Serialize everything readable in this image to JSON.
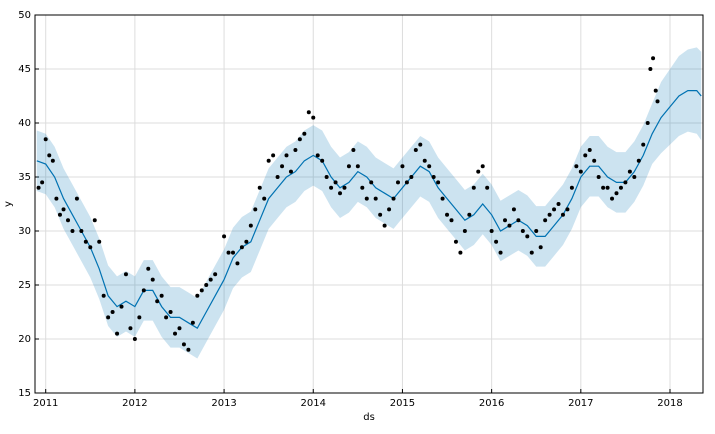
{
  "chart_data": {
    "type": "forecast",
    "x_label": "ds",
    "y_label": "y",
    "xlim": [
      2010.88,
      2018.37
    ],
    "ylim": [
      15,
      50
    ],
    "xticks": [
      2011,
      2012,
      2013,
      2014,
      2015,
      2016,
      2017,
      2018
    ],
    "yticks": [
      15,
      20,
      25,
      30,
      35,
      40,
      45,
      50
    ],
    "grid": true,
    "line_color": "#0072b2",
    "band_color": "#0072b2",
    "point_color": "#000000",
    "x": [
      2010.9,
      2011.0,
      2011.1,
      2011.2,
      2011.3,
      2011.4,
      2011.5,
      2011.6,
      2011.7,
      2011.8,
      2011.9,
      2012.0,
      2012.1,
      2012.2,
      2012.3,
      2012.4,
      2012.5,
      2012.6,
      2012.7,
      2012.8,
      2012.9,
      2013.0,
      2013.1,
      2013.2,
      2013.3,
      2013.4,
      2013.5,
      2013.6,
      2013.7,
      2013.8,
      2013.9,
      2014.0,
      2014.1,
      2014.2,
      2014.3,
      2014.4,
      2014.5,
      2014.6,
      2014.7,
      2014.8,
      2014.9,
      2015.0,
      2015.1,
      2015.2,
      2015.3,
      2015.4,
      2015.5,
      2015.6,
      2015.7,
      2015.8,
      2015.9,
      2016.0,
      2016.1,
      2016.2,
      2016.3,
      2016.4,
      2016.5,
      2016.6,
      2016.7,
      2016.8,
      2016.9,
      2017.0,
      2017.1,
      2017.2,
      2017.3,
      2017.4,
      2017.5,
      2017.6,
      2017.7,
      2017.8,
      2017.9,
      2018.0,
      2018.1,
      2018.2,
      2018.3,
      2018.35
    ],
    "yhat": [
      36.5,
      36.2,
      35,
      33,
      31.5,
      30,
      28.5,
      26.5,
      24,
      23,
      23.5,
      23,
      24.5,
      24.5,
      23,
      22,
      22,
      21.5,
      21,
      22.5,
      24,
      25.5,
      27.5,
      28.5,
      29,
      31,
      33,
      34,
      35,
      35.5,
      36.5,
      37,
      36.5,
      35,
      34,
      34.5,
      35.5,
      35,
      34,
      33.5,
      33,
      34,
      35,
      36,
      35.5,
      34,
      33,
      32,
      31,
      31.5,
      32.5,
      31.5,
      30,
      30.5,
      31,
      30.5,
      29.5,
      29.5,
      30.5,
      31.5,
      33,
      35,
      36,
      36,
      35,
      34.5,
      34.5,
      35.5,
      37,
      39,
      40.5,
      41.5,
      42.5,
      43,
      43,
      42.5
    ],
    "yhat_lower": [
      33.7,
      33.4,
      32.2,
      30.2,
      28.7,
      27.2,
      25.7,
      23.7,
      21.2,
      20.2,
      20.7,
      20.2,
      21.7,
      21.7,
      20.2,
      19.2,
      19.2,
      18.7,
      18.2,
      19.7,
      21.2,
      22.7,
      24.7,
      25.7,
      26.2,
      28.2,
      30.2,
      31.2,
      32.2,
      32.7,
      33.7,
      34.2,
      33.7,
      32.2,
      31.2,
      31.7,
      32.7,
      32.2,
      31.2,
      30.7,
      30.2,
      31.2,
      32.2,
      33.2,
      32.7,
      31.2,
      30.2,
      29.2,
      28.2,
      28.7,
      29.7,
      28.7,
      27.2,
      27.7,
      28.2,
      27.7,
      26.7,
      26.7,
      27.7,
      28.7,
      30.2,
      32.2,
      33.2,
      33.2,
      32.2,
      31.7,
      31.7,
      32.7,
      34.2,
      36.2,
      37.2,
      38,
      38.8,
      39.2,
      39,
      38.4
    ],
    "yhat_upper": [
      39.3,
      39,
      37.8,
      35.8,
      34.3,
      32.8,
      31.3,
      29.3,
      26.8,
      25.8,
      26.3,
      25.8,
      27.3,
      27.3,
      25.8,
      24.8,
      24.8,
      24.3,
      23.8,
      25.3,
      26.8,
      28.3,
      30.3,
      31.3,
      31.8,
      33.8,
      35.8,
      36.8,
      37.8,
      38.3,
      39.3,
      39.8,
      39.3,
      37.8,
      36.8,
      37.3,
      38.3,
      37.8,
      36.8,
      36.3,
      35.8,
      36.8,
      37.8,
      38.8,
      38.3,
      36.8,
      35.8,
      34.8,
      33.8,
      34.3,
      35.3,
      34.3,
      32.8,
      33.3,
      33.8,
      33.3,
      32.3,
      32.3,
      33.3,
      34.3,
      35.8,
      37.8,
      38.8,
      38.8,
      37.8,
      37.3,
      37.3,
      38.3,
      39.8,
      41.8,
      43.8,
      45,
      46.2,
      46.8,
      47,
      46.6
    ],
    "observed": {
      "x": [
        2010.92,
        2010.96,
        2011.0,
        2011.04,
        2011.08,
        2011.12,
        2011.16,
        2011.2,
        2011.25,
        2011.3,
        2011.35,
        2011.4,
        2011.45,
        2011.5,
        2011.55,
        2011.6,
        2011.65,
        2011.7,
        2011.75,
        2011.8,
        2011.85,
        2011.9,
        2011.95,
        2012.0,
        2012.05,
        2012.1,
        2012.15,
        2012.2,
        2012.25,
        2012.3,
        2012.35,
        2012.4,
        2012.45,
        2012.5,
        2012.55,
        2012.6,
        2012.65,
        2012.7,
        2012.75,
        2012.8,
        2012.85,
        2012.9,
        2013.0,
        2013.05,
        2013.1,
        2013.15,
        2013.2,
        2013.25,
        2013.3,
        2013.35,
        2013.4,
        2013.45,
        2013.5,
        2013.55,
        2013.6,
        2013.65,
        2013.7,
        2013.75,
        2013.8,
        2013.85,
        2013.9,
        2013.95,
        2014.0,
        2014.05,
        2014.1,
        2014.15,
        2014.2,
        2014.25,
        2014.3,
        2014.35,
        2014.4,
        2014.45,
        2014.5,
        2014.55,
        2014.6,
        2014.65,
        2014.7,
        2014.75,
        2014.8,
        2014.85,
        2014.9,
        2014.95,
        2015.0,
        2015.05,
        2015.1,
        2015.15,
        2015.2,
        2015.25,
        2015.3,
        2015.35,
        2015.4,
        2015.45,
        2015.5,
        2015.55,
        2015.6,
        2015.65,
        2015.7,
        2015.75,
        2015.8,
        2015.85,
        2015.9,
        2015.95,
        2016.0,
        2016.05,
        2016.1,
        2016.15,
        2016.2,
        2016.25,
        2016.3,
        2016.35,
        2016.4,
        2016.45,
        2016.5,
        2016.55,
        2016.6,
        2016.65,
        2016.7,
        2016.75,
        2016.8,
        2016.85,
        2016.9,
        2016.95,
        2017.0,
        2017.05,
        2017.1,
        2017.15,
        2017.2,
        2017.25,
        2017.3,
        2017.35,
        2017.4,
        2017.45,
        2017.5,
        2017.55,
        2017.6,
        2017.65,
        2017.7,
        2017.75,
        2017.78,
        2017.81,
        2017.84,
        2017.86
      ],
      "y": [
        34,
        34.5,
        38.5,
        37,
        36.5,
        33,
        31.5,
        32,
        31,
        30,
        33,
        30,
        29,
        28.5,
        31,
        29,
        24,
        22,
        22.5,
        20.5,
        23,
        26,
        21,
        20,
        22,
        24.5,
        26.5,
        25.5,
        23.5,
        24,
        22,
        22.5,
        20.5,
        21,
        19.5,
        19,
        21.5,
        24,
        24.5,
        25,
        25.5,
        26,
        29.5,
        28,
        28,
        27,
        28.5,
        29,
        30.5,
        32,
        34,
        33,
        36.5,
        37,
        35,
        36,
        37,
        35.5,
        37.5,
        38.5,
        39,
        41,
        40.5,
        37,
        36.5,
        35,
        34,
        34.5,
        33.5,
        34,
        36,
        37.5,
        36,
        34,
        33,
        34.5,
        33,
        31.5,
        30.5,
        32,
        33,
        34.5,
        36,
        34.5,
        35,
        37.5,
        38,
        36.5,
        36,
        35,
        34.5,
        33,
        31.5,
        31,
        29,
        28,
        30,
        31.5,
        34,
        35.5,
        36,
        34,
        30,
        29,
        28,
        31,
        30.5,
        32,
        31,
        30,
        29.5,
        28,
        30,
        28.5,
        31,
        31.5,
        32,
        32.5,
        31.5,
        32,
        34,
        36,
        35.5,
        37,
        37.5,
        36.5,
        35,
        34,
        34,
        33,
        33.5,
        34,
        34.5,
        35.5,
        35,
        36.5,
        38,
        40,
        45,
        46,
        43,
        42
      ]
    }
  }
}
